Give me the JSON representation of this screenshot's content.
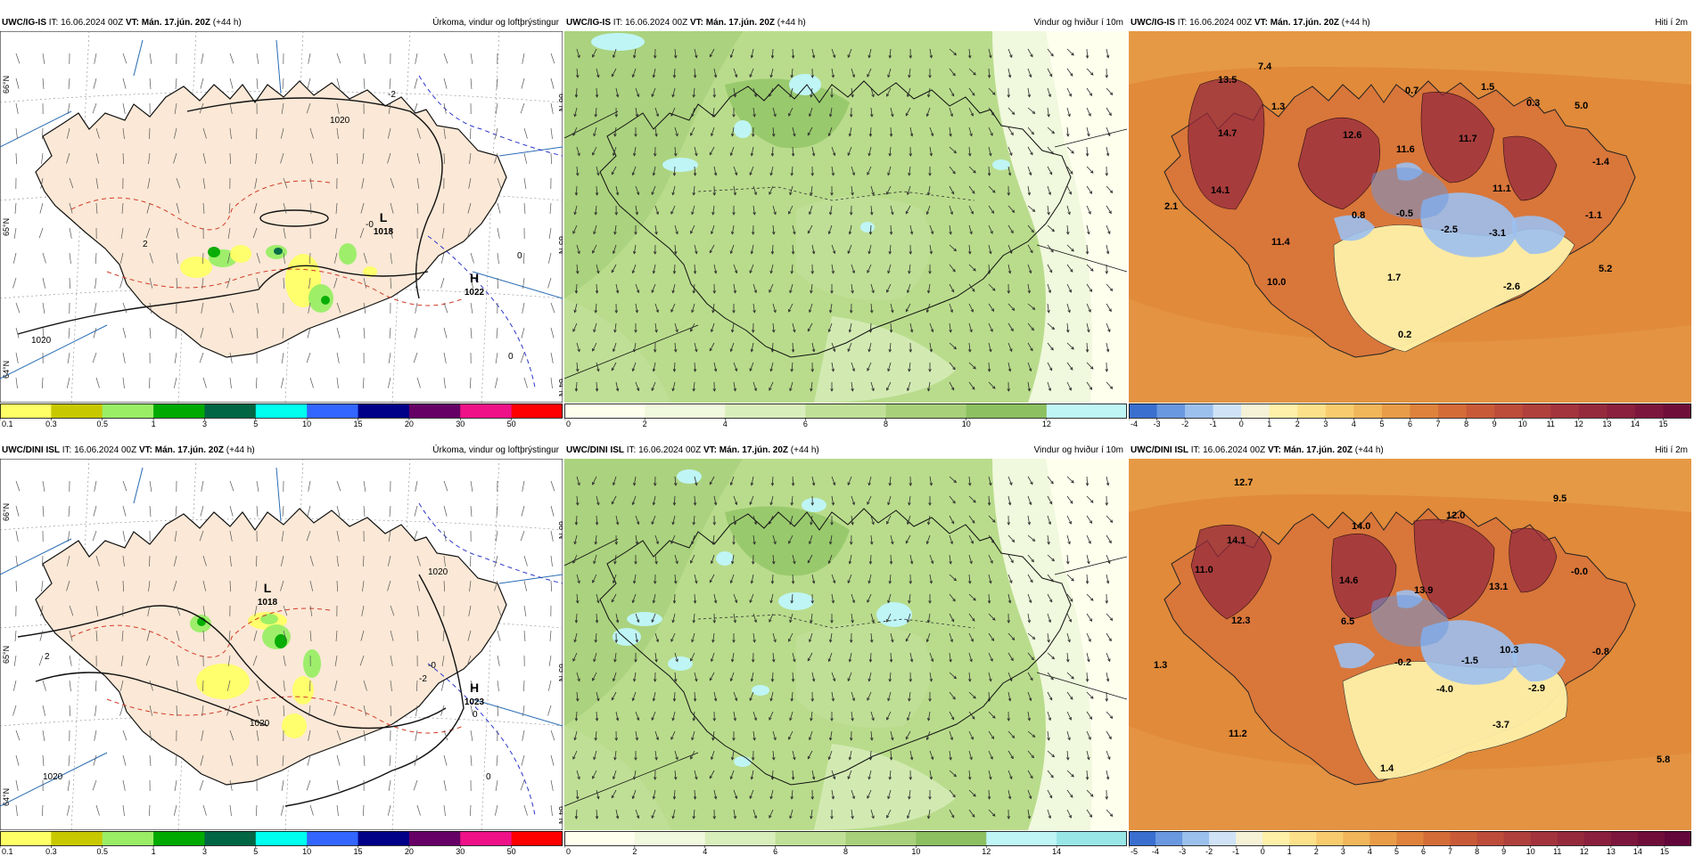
{
  "colors": {
    "precip_scale": [
      "#ffff66",
      "#c8c800",
      "#99ee66",
      "#00aa00",
      "#006644",
      "#00ffee",
      "#3366ff",
      "#000088",
      "#660066",
      "#ee1188",
      "#ff0000"
    ],
    "wind_scale": [
      "#ffffee",
      "#f0f8dd",
      "#d8eebb",
      "#c0e098",
      "#a8d07a",
      "#8cc060",
      "#bff5f5",
      "#99e6e6",
      "#7fd4d4",
      "#66c2c2",
      "#4db0b0"
    ],
    "temp_scale": [
      "#3a6fd0",
      "#6a98e0",
      "#9cc0ee",
      "#cfe2f6",
      "#f6f2d8",
      "#fff0a8",
      "#fde08a",
      "#f8cc6e",
      "#f1b55a",
      "#e89c48",
      "#de823c",
      "#d46c38",
      "#c95a38",
      "#bd4c3a",
      "#b0403c",
      "#a3343d",
      "#962a3d",
      "#8a203d",
      "#7d163c",
      "#700e3a",
      "#63063a"
    ],
    "land": "#fbe8d6",
    "sea": "#ffffff",
    "wind_bg": "#b9dc8c",
    "temp_bg": "#e08a3a"
  },
  "panels": [
    {
      "model": "UWC/IG-IS",
      "it_label": "IT:",
      "it_value": "16.06.2024 00Z",
      "vt_label": "VT: Mán. 17.jún. 20Z",
      "lead": "(+44 h)",
      "title": "Úrkoma, vindur og loftþrýstingur",
      "colorbar_labels": [
        "0.1",
        "0.3",
        "0.5",
        "1",
        "3",
        "5",
        "10",
        "15",
        "20",
        "30",
        "50"
      ],
      "lat_labels": [
        "66°N",
        "65°N",
        "64°N"
      ],
      "pressure_labels": [
        {
          "text": "L",
          "sub": "1018"
        },
        {
          "text": "H",
          "sub": "1022"
        }
      ],
      "isobar_labels": [
        "1020",
        "1020",
        "-2",
        "2",
        "0",
        "0",
        "-0"
      ]
    },
    {
      "model": "UWC/IG-IS",
      "it_label": "IT:",
      "it_value": "16.06.2024 00Z",
      "vt_label": "VT: Mán. 17.jún. 20Z",
      "lead": "(+44 h)",
      "title": "Vindur og hviður í 10m",
      "colorbar_labels": [
        "0",
        "2",
        "4",
        "6",
        "8",
        "10",
        "12"
      ]
    },
    {
      "model": "UWC/IG-IS",
      "it_label": "IT:",
      "it_value": "16.06.2024 00Z",
      "vt_label": "VT: Mán. 17.jún. 20Z",
      "lead": "(+44 h)",
      "title": "Hiti í 2m",
      "colorbar_labels": [
        "-4",
        "-3",
        "-2",
        "-1",
        "0",
        "1",
        "2",
        "3",
        "4",
        "5",
        "6",
        "7",
        "8",
        "9",
        "10",
        "11",
        "12",
        "13",
        "14",
        "15"
      ],
      "values": [
        "13.5",
        "7.4",
        "1.3",
        "0.7",
        "1.5",
        "0.3",
        "5.0",
        "14.7",
        "12.6",
        "11.6",
        "11.7",
        "-1.4",
        "14.1",
        "11.1",
        "-1.1",
        "2.1",
        "0.8",
        "-0.5",
        "-2.5",
        "-3.1",
        "11.4",
        "10.0",
        "1.7",
        "-2.6",
        "5.2",
        "0.2"
      ]
    },
    {
      "model": "UWC/DINI ISL",
      "it_label": "IT:",
      "it_value": "16.06.2024 00Z",
      "vt_label": "VT: Mán. 17.jún. 20Z",
      "lead": "(+44 h)",
      "title": "Úrkoma, vindur og loftþrýstingur",
      "colorbar_labels": [
        "0.1",
        "0.3",
        "0.5",
        "1",
        "3",
        "5",
        "10",
        "15",
        "20",
        "30",
        "50"
      ],
      "lat_labels": [
        "66°N",
        "65°N",
        "64°N"
      ],
      "pressure_labels": [
        {
          "text": "L",
          "sub": "1018"
        },
        {
          "text": "H",
          "sub": "1023"
        }
      ],
      "isobar_labels": [
        "1020",
        "1020",
        "1020",
        "-2",
        "2",
        "0",
        "0",
        "-0"
      ]
    },
    {
      "model": "UWC/DINI ISL",
      "it_label": "IT:",
      "it_value": "16.06.2024 00Z",
      "vt_label": "VT: Mán. 17.jún. 20Z",
      "lead": "(+44 h)",
      "title": "Vindur og hviður í 10m",
      "colorbar_labels": [
        "0",
        "2",
        "4",
        "6",
        "8",
        "10",
        "12",
        "14"
      ]
    },
    {
      "model": "UWC/DINI ISL",
      "it_label": "IT:",
      "it_value": "16.06.2024 00Z",
      "vt_label": "VT: Mán. 17.jún. 20Z",
      "lead": "(+44 h)",
      "title": "Hiti í 2m",
      "colorbar_labels": [
        "-5",
        "-4",
        "-3",
        "-2",
        "-1",
        "0",
        "1",
        "2",
        "3",
        "4",
        "5",
        "6",
        "7",
        "8",
        "9",
        "10",
        "11",
        "12",
        "13",
        "14",
        "15"
      ],
      "values": [
        "12.7",
        "9.5",
        "14.1",
        "14.0",
        "12.0",
        "11.0",
        "14.6",
        "13.9",
        "13.1",
        "-0.0",
        "12.3",
        "6.5",
        "10.3",
        "-0.8",
        "1.3",
        "-0.2",
        "-1.5",
        "-4.0",
        "-2.9",
        "11.2",
        "-3.7",
        "1.4",
        "5.8"
      ]
    }
  ]
}
